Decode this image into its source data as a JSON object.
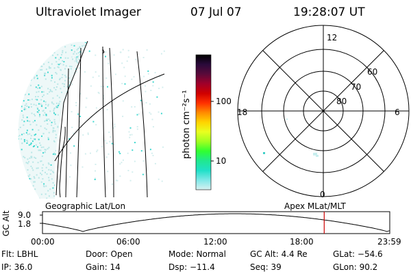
{
  "header": {
    "title": "Ultraviolet Imager",
    "date": "07 Jul 07",
    "time": "19:28:07 UT"
  },
  "colorbar": {
    "unit_label": "photon cm⁻²s⁻¹",
    "ticks": [
      "100",
      "10"
    ],
    "colors": [
      "#000000",
      "#2a0a3a",
      "#5a0a3a",
      "#a0002a",
      "#d00000",
      "#ff3000",
      "#ff8c00",
      "#ffd400",
      "#e8ff20",
      "#a0ff20",
      "#30ff30",
      "#20e890",
      "#20e0c8",
      "#80e8e8",
      "#d8f0f0"
    ]
  },
  "left_panel": {
    "label": "Geographic Lat/Lon",
    "speckle_color": "#40d8d0"
  },
  "polar_plot": {
    "label": "Apex MLat/MLT",
    "mlt_labels": [
      "12",
      "18",
      "6",
      "0"
    ],
    "lat_labels": [
      "60",
      "70",
      "80"
    ]
  },
  "altitude_strip": {
    "axis_label": "GC Alt",
    "y_ticks": [
      "9.0",
      "1.8"
    ],
    "x_ticks": [
      "00:00",
      "06:00",
      "12:00",
      "18:00",
      "23:59"
    ],
    "current_time_marker_hours": 19.47,
    "marker_color": "#cc0000"
  },
  "status": {
    "flt": "Flt: LBHL",
    "ip": "IP: 36.0",
    "door": "Door: Open",
    "gain": "Gain: 14",
    "mode": "Mode: Normal",
    "dsp": "Dsp:  −11.4",
    "gc_alt": "GC Alt: 4.4 Re",
    "seq": "Seq: 39",
    "glat": "GLat:  −54.6",
    "glon": "GLon:  90.2"
  }
}
